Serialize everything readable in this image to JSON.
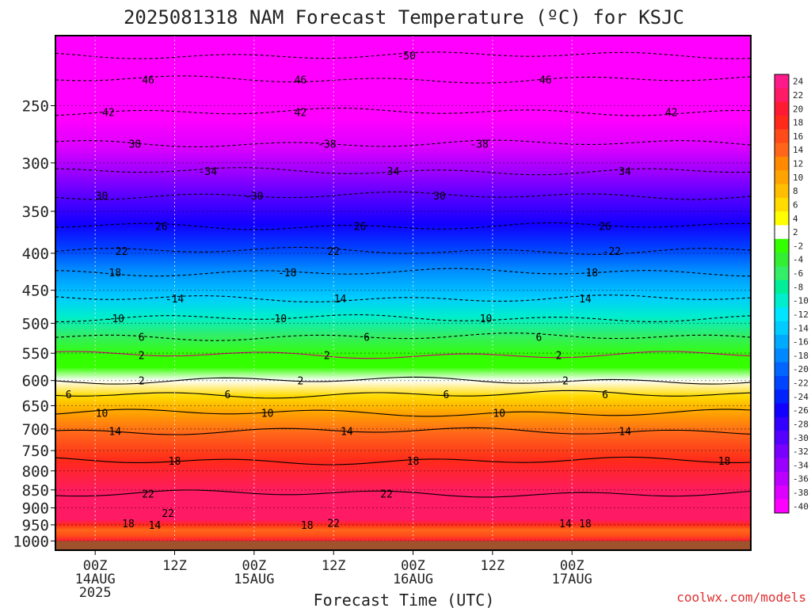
{
  "chart_data": {
    "type": "heatmap",
    "title": "2025081318 NAM Forecast Temperature (ºC) for KSJC",
    "xlabel": "Forecast Time (UTC)",
    "ylabel": "",
    "credit": "coolwx.com/models",
    "pressure_axis": {
      "scale": "log",
      "range": [
        1030,
        200
      ],
      "inverted": true,
      "ticks": [
        "250",
        "300",
        "350",
        "400",
        "450",
        "500",
        "550",
        "600",
        "650",
        "700",
        "750",
        "800",
        "850",
        "900",
        "950",
        "1000"
      ]
    },
    "time_axis": {
      "range_hours": [
        -6,
        99
      ],
      "ticks": [
        {
          "hour": 0,
          "label": "00Z",
          "date": "14AUG",
          "year": "2025"
        },
        {
          "hour": 12,
          "label": "12Z",
          "date": "",
          "year": ""
        },
        {
          "hour": 24,
          "label": "00Z",
          "date": "15AUG",
          "year": ""
        },
        {
          "hour": 36,
          "label": "12Z",
          "date": "",
          "year": ""
        },
        {
          "hour": 48,
          "label": "00Z",
          "date": "16AUG",
          "year": ""
        },
        {
          "hour": 60,
          "label": "12Z",
          "date": "",
          "year": ""
        },
        {
          "hour": 72,
          "label": "00Z",
          "date": "17AUG",
          "year": ""
        }
      ]
    },
    "grid": true,
    "ground_level_hpa": 1000,
    "colorbar": {
      "labels": [
        "24",
        "22",
        "20",
        "18",
        "16",
        "14",
        "12",
        "10",
        "8",
        "6",
        "4",
        "2",
        "-2",
        "-4",
        "-6",
        "-8",
        "-10",
        "-12",
        "-14",
        "-16",
        "-18",
        "-20",
        "-22",
        "-24",
        "-26",
        "-28",
        "-30",
        "-32",
        "-34",
        "-36",
        "-38",
        "-40"
      ],
      "stops": [
        {
          "t": 24,
          "color": "#ff1a8c"
        },
        {
          "t": 22,
          "color": "#ff1a66"
        },
        {
          "t": 20,
          "color": "#ff1a33"
        },
        {
          "t": 18,
          "color": "#ff2a1a"
        },
        {
          "t": 16,
          "color": "#ff4a1a"
        },
        {
          "t": 14,
          "color": "#ff661a"
        },
        {
          "t": 12,
          "color": "#ff8a00"
        },
        {
          "t": 10,
          "color": "#ffa300"
        },
        {
          "t": 8,
          "color": "#ffbf00"
        },
        {
          "t": 6,
          "color": "#ffdb00"
        },
        {
          "t": 4,
          "color": "#ffff00"
        },
        {
          "t": 2,
          "color": "#ffffff"
        },
        {
          "t": -2,
          "color": "#33ff00"
        },
        {
          "t": -4,
          "color": "#33ee33"
        },
        {
          "t": -6,
          "color": "#33ee66"
        },
        {
          "t": -8,
          "color": "#00ee99"
        },
        {
          "t": -10,
          "color": "#00eecc"
        },
        {
          "t": -12,
          "color": "#00e6ff"
        },
        {
          "t": -14,
          "color": "#00ccff"
        },
        {
          "t": -16,
          "color": "#00aaff"
        },
        {
          "t": -18,
          "color": "#0088ff"
        },
        {
          "t": -20,
          "color": "#0066ff"
        },
        {
          "t": -22,
          "color": "#0044ff"
        },
        {
          "t": -24,
          "color": "#0022ff"
        },
        {
          "t": -26,
          "color": "#1100ff"
        },
        {
          "t": -28,
          "color": "#3300ff"
        },
        {
          "t": -30,
          "color": "#5500ff"
        },
        {
          "t": -32,
          "color": "#7700ff"
        },
        {
          "t": -34,
          "color": "#9900ff"
        },
        {
          "t": -36,
          "color": "#bb00ff"
        },
        {
          "t": -38,
          "color": "#dd00ff"
        },
        {
          "t": -40,
          "color": "#ff00ff"
        }
      ]
    },
    "ground_color": "#a0522d",
    "profile": [
      {
        "p": 200,
        "t": -50
      },
      {
        "p": 230,
        "t": -46
      },
      {
        "p": 260,
        "t": -42
      },
      {
        "p": 285,
        "t": -38
      },
      {
        "p": 310,
        "t": -34
      },
      {
        "p": 335,
        "t": -30
      },
      {
        "p": 365,
        "t": -26
      },
      {
        "p": 395,
        "t": -22
      },
      {
        "p": 420,
        "t": -18
      },
      {
        "p": 460,
        "t": -14
      },
      {
        "p": 490,
        "t": -10
      },
      {
        "p": 520,
        "t": -6
      },
      {
        "p": 555,
        "t": -2
      },
      {
        "p": 575,
        "t": 0
      },
      {
        "p": 600,
        "t": 2
      },
      {
        "p": 630,
        "t": 6
      },
      {
        "p": 665,
        "t": 10
      },
      {
        "p": 710,
        "t": 14
      },
      {
        "p": 775,
        "t": 18
      },
      {
        "p": 860,
        "t": 22
      },
      {
        "p": 910,
        "t": 23
      },
      {
        "p": 935,
        "t": 22
      },
      {
        "p": 950,
        "t": 18
      },
      {
        "p": 965,
        "t": 14
      },
      {
        "p": 985,
        "t": 17
      },
      {
        "p": 1000,
        "t": 20
      }
    ],
    "isotherms": [
      {
        "t": -50,
        "p": 213,
        "labels": [
          {
            "hour": 47,
            "text": "-50"
          }
        ]
      },
      {
        "t": -46,
        "p": 230,
        "labels": [
          {
            "hour": 8,
            "text": "46"
          },
          {
            "hour": 31,
            "text": "46"
          },
          {
            "hour": 68,
            "text": "46"
          }
        ]
      },
      {
        "t": -42,
        "p": 255,
        "labels": [
          {
            "hour": 2,
            "text": "42"
          },
          {
            "hour": 31,
            "text": "42"
          },
          {
            "hour": 87,
            "text": "42"
          }
        ]
      },
      {
        "t": -38,
        "p": 282,
        "labels": [
          {
            "hour": 6,
            "text": "38"
          },
          {
            "hour": 35,
            "text": "-38"
          },
          {
            "hour": 58,
            "text": "-38"
          }
        ]
      },
      {
        "t": -34,
        "p": 308,
        "labels": [
          {
            "hour": 17,
            "text": "-34"
          },
          {
            "hour": 45,
            "text": "34"
          },
          {
            "hour": 80,
            "text": "34"
          }
        ]
      },
      {
        "t": -30,
        "p": 333,
        "labels": [
          {
            "hour": 1,
            "text": "30"
          },
          {
            "hour": 24,
            "text": "-30"
          },
          {
            "hour": 52,
            "text": "30"
          }
        ]
      },
      {
        "t": -26,
        "p": 367,
        "labels": [
          {
            "hour": 10,
            "text": "26"
          },
          {
            "hour": 40,
            "text": "26"
          },
          {
            "hour": 77,
            "text": "26"
          }
        ]
      },
      {
        "t": -22,
        "p": 397,
        "labels": [
          {
            "hour": 4,
            "text": "22"
          },
          {
            "hour": 36,
            "text": "22"
          },
          {
            "hour": 78,
            "text": "-22"
          }
        ]
      },
      {
        "t": -18,
        "p": 425,
        "labels": [
          {
            "hour": 3,
            "text": "18"
          },
          {
            "hour": 29,
            "text": "-18"
          },
          {
            "hour": 75,
            "text": "18"
          }
        ]
      },
      {
        "t": -14,
        "p": 462,
        "labels": [
          {
            "hour": 12,
            "text": "-14"
          },
          {
            "hour": 37,
            "text": "14"
          },
          {
            "hour": 74,
            "text": "14"
          }
        ]
      },
      {
        "t": -10,
        "p": 492,
        "labels": [
          {
            "hour": 3,
            "text": "-10"
          },
          {
            "hour": 28,
            "text": "10"
          },
          {
            "hour": 59,
            "text": "10"
          }
        ]
      },
      {
        "t": -6,
        "p": 522,
        "labels": [
          {
            "hour": 7,
            "text": "6"
          },
          {
            "hour": 41,
            "text": "6"
          },
          {
            "hour": 67,
            "text": "6"
          }
        ]
      },
      {
        "t": -2,
        "p": 553,
        "labels": [
          {
            "hour": 7,
            "text": "2"
          },
          {
            "hour": 35,
            "text": "2"
          },
          {
            "hour": 70,
            "text": "2"
          }
        ]
      },
      {
        "t": 2,
        "p": 600,
        "labels": [
          {
            "hour": 7,
            "text": "2"
          },
          {
            "hour": 31,
            "text": "2"
          },
          {
            "hour": 71,
            "text": "2"
          }
        ]
      },
      {
        "t": 6,
        "p": 627,
        "labels": [
          {
            "hour": -4,
            "text": "6"
          },
          {
            "hour": 20,
            "text": "6"
          },
          {
            "hour": 53,
            "text": "6"
          },
          {
            "hour": 77,
            "text": "6"
          }
        ]
      },
      {
        "t": 10,
        "p": 665,
        "labels": [
          {
            "hour": 1,
            "text": "10"
          },
          {
            "hour": 26,
            "text": "10"
          },
          {
            "hour": 61,
            "text": "10"
          }
        ]
      },
      {
        "t": 14,
        "p": 705,
        "labels": [
          {
            "hour": 3,
            "text": "14"
          },
          {
            "hour": 38,
            "text": "14"
          },
          {
            "hour": 80,
            "text": "14"
          }
        ]
      },
      {
        "t": 18,
        "p": 775,
        "labels": [
          {
            "hour": 12,
            "text": "18"
          },
          {
            "hour": 48,
            "text": "18"
          },
          {
            "hour": 95,
            "text": "18"
          }
        ]
      },
      {
        "t": 22,
        "p": 860,
        "labels": [
          {
            "hour": 8,
            "text": "22"
          },
          {
            "hour": 44,
            "text": "22"
          }
        ]
      }
    ],
    "near_surface_labels": [
      {
        "hour": 11,
        "p": 915,
        "text": "22"
      },
      {
        "hour": 5,
        "p": 945,
        "text": "18"
      },
      {
        "hour": 9,
        "p": 950,
        "text": "14"
      },
      {
        "hour": 32,
        "p": 950,
        "text": "18"
      },
      {
        "hour": 36,
        "p": 944,
        "text": "22"
      },
      {
        "hour": 71,
        "p": 945,
        "text": "14"
      },
      {
        "hour": 74,
        "p": 945,
        "text": "18"
      }
    ]
  }
}
